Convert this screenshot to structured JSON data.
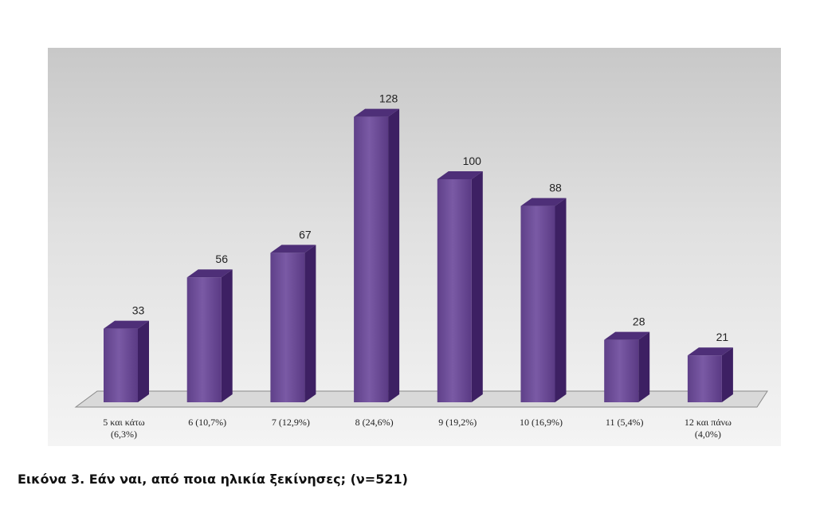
{
  "caption": "Εικόνα 3. Εάν ναι, από ποια ηλικία ξεκίνησες; (ν=521)",
  "colors": {
    "bar_front": "#6a4a93",
    "bar_front_light": "#7c5ba6",
    "bar_side": "#3d2063",
    "bar_top": "#4e2f78",
    "floor": "#d9d9d9",
    "floor_edge": "#8a8a8a"
  },
  "chart_data": {
    "type": "bar",
    "title": "",
    "xlabel": "",
    "ylabel": "",
    "ylim": [
      0,
      135
    ],
    "grid": false,
    "legend": "none",
    "categories": [
      [
        "5 και κάτω",
        "(6,3%)"
      ],
      [
        "6 (10,7%)"
      ],
      [
        "7 (12,9%)"
      ],
      [
        "8 (24,6%)"
      ],
      [
        "9 (19,2%)"
      ],
      [
        "10 (16,9%)"
      ],
      [
        "11 (5,4%)"
      ],
      [
        "12 και πάνω",
        "(4,0%)"
      ]
    ],
    "values": [
      33,
      56,
      67,
      128,
      100,
      88,
      28,
      21
    ]
  }
}
